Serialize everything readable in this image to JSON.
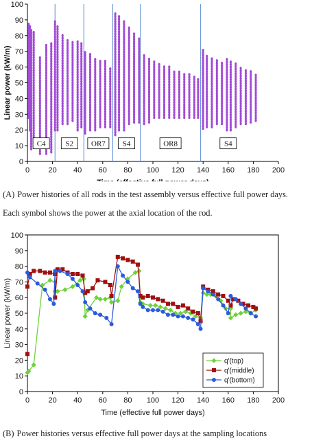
{
  "chart_data": [
    {
      "type": "scatter",
      "xlabel": "Time (effective full power days)",
      "ylabel": "Linear power (kW/m)",
      "xlim": [
        0,
        200
      ],
      "ylim": [
        0,
        100
      ],
      "xticks": [
        "0",
        "20",
        "40",
        "60",
        "80",
        "100",
        "120",
        "140",
        "160",
        "180",
        "200"
      ],
      "yticks": [
        "0",
        "10",
        "20",
        "30",
        "40",
        "50",
        "60",
        "70",
        "80",
        "90",
        "100"
      ],
      "grid": false,
      "marker_color": "#a24bd6",
      "divider_color": "#6f9ad8",
      "region_boundaries": [
        22,
        45,
        68,
        90,
        138
      ],
      "regions": [
        {
          "label": "C4",
          "x": 11
        },
        {
          "label": "S2",
          "x": 33.5
        },
        {
          "label": "OR7",
          "x": 56.5
        },
        {
          "label": "S4",
          "x": 79
        },
        {
          "label": "OR8",
          "x": 114
        },
        {
          "label": "S4",
          "x": 160
        }
      ],
      "rods": [
        {
          "x": 1,
          "min": 28,
          "max": 88
        },
        {
          "x": 2,
          "min": 20,
          "max": 86
        },
        {
          "x": 3,
          "min": 8,
          "max": 84
        },
        {
          "x": 5,
          "min": 10,
          "max": 83
        },
        {
          "x": 10,
          "min": 5,
          "max": 67
        },
        {
          "x": 15,
          "min": 5,
          "max": 75
        },
        {
          "x": 19,
          "min": 6,
          "max": 76
        },
        {
          "x": 22,
          "min": 20,
          "max": 90
        },
        {
          "x": 24,
          "min": 20,
          "max": 86
        },
        {
          "x": 28,
          "min": 24,
          "max": 80
        },
        {
          "x": 32,
          "min": 24,
          "max": 78
        },
        {
          "x": 36,
          "min": 26,
          "max": 77
        },
        {
          "x": 40,
          "min": 20,
          "max": 76
        },
        {
          "x": 43,
          "min": 22,
          "max": 75
        },
        {
          "x": 46,
          "min": 18,
          "max": 70
        },
        {
          "x": 50,
          "min": 20,
          "max": 68
        },
        {
          "x": 54,
          "min": 20,
          "max": 66
        },
        {
          "x": 58,
          "min": 22,
          "max": 65
        },
        {
          "x": 62,
          "min": 22,
          "max": 64
        },
        {
          "x": 66,
          "min": 22,
          "max": 60
        },
        {
          "x": 70,
          "min": 17,
          "max": 95
        },
        {
          "x": 73,
          "min": 20,
          "max": 93
        },
        {
          "x": 77,
          "min": 20,
          "max": 90
        },
        {
          "x": 81,
          "min": 24,
          "max": 86
        },
        {
          "x": 85,
          "min": 25,
          "max": 82
        },
        {
          "x": 89,
          "min": 25,
          "max": 78
        },
        {
          "x": 93,
          "min": 24,
          "max": 68
        },
        {
          "x": 97,
          "min": 25,
          "max": 66
        },
        {
          "x": 101,
          "min": 28,
          "max": 64
        },
        {
          "x": 105,
          "min": 28,
          "max": 62
        },
        {
          "x": 109,
          "min": 28,
          "max": 61
        },
        {
          "x": 113,
          "min": 28,
          "max": 60
        },
        {
          "x": 117,
          "min": 28,
          "max": 58
        },
        {
          "x": 121,
          "min": 28,
          "max": 58
        },
        {
          "x": 125,
          "min": 28,
          "max": 56
        },
        {
          "x": 129,
          "min": 28,
          "max": 56
        },
        {
          "x": 133,
          "min": 28,
          "max": 54
        },
        {
          "x": 136,
          "min": 28,
          "max": 52
        },
        {
          "x": 140,
          "min": 21,
          "max": 72
        },
        {
          "x": 143,
          "min": 22,
          "max": 68
        },
        {
          "x": 147,
          "min": 22,
          "max": 66
        },
        {
          "x": 151,
          "min": 24,
          "max": 64
        },
        {
          "x": 155,
          "min": 24,
          "max": 63
        },
        {
          "x": 159,
          "min": 20,
          "max": 66
        },
        {
          "x": 162,
          "min": 20,
          "max": 64
        },
        {
          "x": 166,
          "min": 22,
          "max": 62
        },
        {
          "x": 170,
          "min": 24,
          "max": 60
        },
        {
          "x": 174,
          "min": 24,
          "max": 58
        },
        {
          "x": 178,
          "min": 25,
          "max": 57
        },
        {
          "x": 182,
          "min": 26,
          "max": 56
        }
      ]
    },
    {
      "type": "line",
      "xlabel": "Time (effective full power days)",
      "ylabel": "Linear power (kW/m)",
      "xlim": [
        0,
        200
      ],
      "ylim": [
        0,
        100
      ],
      "xticks": [
        "0",
        "20",
        "40",
        "60",
        "80",
        "100",
        "120",
        "140",
        "160",
        "180",
        "200"
      ],
      "yticks": [
        "0",
        "10",
        "20",
        "30",
        "40",
        "50",
        "60",
        "70",
        "80",
        "90",
        "100"
      ],
      "grid": false,
      "legend_position": "bottom-right",
      "series": [
        {
          "name": "q'(top)",
          "color": "#6fd13a",
          "marker": "diamond",
          "points": [
            [
              0,
              12
            ],
            [
              1,
              13
            ],
            [
              5,
              17
            ],
            [
              12,
              68
            ],
            [
              18,
              71
            ],
            [
              22,
              70
            ],
            [
              22,
              64
            ],
            [
              24,
              64
            ],
            [
              30,
              65
            ],
            [
              36,
              67
            ],
            [
              42,
              71
            ],
            [
              45,
              72
            ],
            [
              46,
              48
            ],
            [
              48,
              52
            ],
            [
              55,
              60
            ],
            [
              58,
              59
            ],
            [
              62,
              59
            ],
            [
              66,
              60
            ],
            [
              67,
              57
            ],
            [
              72,
              58
            ],
            [
              75,
              67
            ],
            [
              80,
              72
            ],
            [
              86,
              76
            ],
            [
              89,
              77
            ],
            [
              90,
              57
            ],
            [
              92,
              56
            ],
            [
              98,
              55
            ],
            [
              102,
              55
            ],
            [
              106,
              54
            ],
            [
              110,
              53
            ],
            [
              114,
              52
            ],
            [
              118,
              50
            ],
            [
              122,
              50
            ],
            [
              126,
              51
            ],
            [
              130,
              50
            ],
            [
              134,
              48
            ],
            [
              138,
              47
            ],
            [
              140,
              63
            ],
            [
              143,
              62
            ],
            [
              146,
              62
            ],
            [
              150,
              61
            ],
            [
              154,
              58
            ],
            [
              158,
              53
            ],
            [
              162,
              53
            ],
            [
              162,
              47
            ],
            [
              166,
              49
            ],
            [
              170,
              50
            ],
            [
              174,
              51
            ],
            [
              178,
              50
            ],
            [
              182,
              52
            ]
          ]
        },
        {
          "name": "q'(middle)",
          "color": "#a01010",
          "marker": "square",
          "points": [
            [
              0,
              24
            ],
            [
              0,
              67
            ],
            [
              2,
              75
            ],
            [
              5,
              77
            ],
            [
              10,
              77
            ],
            [
              14,
              76
            ],
            [
              18,
              76
            ],
            [
              22,
              75
            ],
            [
              22,
              60
            ],
            [
              24,
              78
            ],
            [
              28,
              78
            ],
            [
              32,
              76
            ],
            [
              36,
              75
            ],
            [
              40,
              75
            ],
            [
              44,
              74
            ],
            [
              46,
              63
            ],
            [
              48,
              64
            ],
            [
              52,
              66
            ],
            [
              56,
              71
            ],
            [
              62,
              70
            ],
            [
              66,
              68
            ],
            [
              67,
              61
            ],
            [
              72,
              86
            ],
            [
              76,
              85
            ],
            [
              80,
              84
            ],
            [
              84,
              83
            ],
            [
              88,
              81
            ],
            [
              90,
              61
            ],
            [
              92,
              60
            ],
            [
              96,
              61
            ],
            [
              100,
              60
            ],
            [
              104,
              59
            ],
            [
              108,
              58
            ],
            [
              112,
              56
            ],
            [
              116,
              56
            ],
            [
              120,
              54
            ],
            [
              124,
              55
            ],
            [
              128,
              53
            ],
            [
              132,
              51
            ],
            [
              136,
              50
            ],
            [
              138,
              45
            ],
            [
              140,
              67
            ],
            [
              144,
              65
            ],
            [
              148,
              64
            ],
            [
              152,
              62
            ],
            [
              156,
              61
            ],
            [
              160,
              58
            ],
            [
              162,
              55
            ],
            [
              164,
              59
            ],
            [
              168,
              58
            ],
            [
              172,
              56
            ],
            [
              176,
              55
            ],
            [
              180,
              54
            ],
            [
              182,
              53
            ]
          ]
        },
        {
          "name": "q'(bottom)",
          "color": "#2b5bdc",
          "marker": "circle",
          "points": [
            [
              0,
              76
            ],
            [
              2,
              73
            ],
            [
              8,
              69
            ],
            [
              14,
              65
            ],
            [
              18,
              59
            ],
            [
              21,
              56
            ],
            [
              22,
              77
            ],
            [
              26,
              77
            ],
            [
              32,
              75
            ],
            [
              36,
              72
            ],
            [
              40,
              68
            ],
            [
              44,
              64
            ],
            [
              46,
              57
            ],
            [
              50,
              53
            ],
            [
              54,
              50
            ],
            [
              58,
              49
            ],
            [
              63,
              47
            ],
            [
              67,
              43
            ],
            [
              72,
              80
            ],
            [
              76,
              74
            ],
            [
              80,
              70
            ],
            [
              84,
              66
            ],
            [
              88,
              64
            ],
            [
              90,
              56
            ],
            [
              92,
              54
            ],
            [
              96,
              52
            ],
            [
              100,
              52
            ],
            [
              104,
              52
            ],
            [
              108,
              51
            ],
            [
              112,
              49
            ],
            [
              116,
              49
            ],
            [
              120,
              48
            ],
            [
              124,
              48
            ],
            [
              128,
              47
            ],
            [
              132,
              46
            ],
            [
              136,
              43
            ],
            [
              138,
              40
            ],
            [
              140,
              66
            ],
            [
              144,
              64
            ],
            [
              148,
              62
            ],
            [
              152,
              59
            ],
            [
              156,
              55
            ],
            [
              160,
              50
            ],
            [
              162,
              61
            ],
            [
              166,
              59
            ],
            [
              170,
              56
            ],
            [
              174,
              53
            ],
            [
              178,
              50
            ],
            [
              182,
              48
            ]
          ]
        }
      ]
    }
  ],
  "captions": {
    "a_label": "(A)",
    "a_line1": "Power histories of all rods in the test assembly versus effective full power days.",
    "a_line2": "Each symbol shows the power at the axial location of the rod.",
    "b_label": "(B)",
    "b_line1": "Power histories versus effective full power days at the sampling locations"
  }
}
